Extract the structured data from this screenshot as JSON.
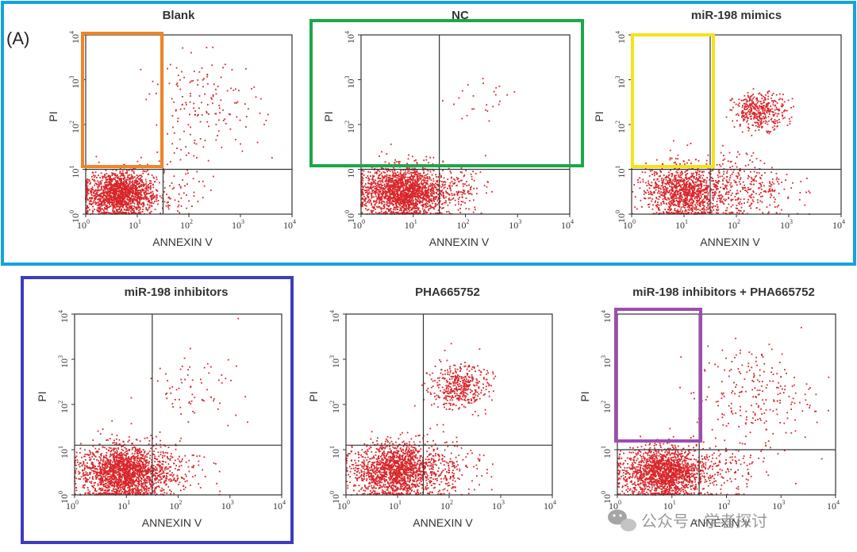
{
  "figure_label": "(A)",
  "watermark": "公众号 · 学者探讨",
  "colors": {
    "dots": "#d8262a",
    "frame": "#333333",
    "highlight_a": "#16a2e0",
    "highlight_b": "#3c3cc0",
    "box_orange": "#f08526",
    "box_green": "#1aa84a",
    "box_yellow": "#f7e21a",
    "box_purple": "#a04bb0"
  },
  "chart_data": [
    {
      "type": "scatter",
      "title": "Blank",
      "xlabel": "ANNEXIN V",
      "ylabel": "PI",
      "scale": "log",
      "xlim": [
        "10^0",
        "10^4"
      ],
      "ylim": [
        "10^0",
        "10^4"
      ],
      "xticks": [
        "10^0",
        "10^1",
        "10^2",
        "10^3",
        "10^4"
      ],
      "yticks": [
        "10^0",
        "10^1",
        "10^2",
        "10^3",
        "10^4"
      ],
      "quadrant_gate": {
        "x": "10^1.5",
        "y": "10^1"
      },
      "populations": [
        {
          "cx": 0.65,
          "cy": 0.45,
          "sx": 0.35,
          "sy": 0.25,
          "n": 1600
        },
        {
          "cx": 2.3,
          "cy": 2.4,
          "sx": 0.55,
          "sy": 0.55,
          "n": 160
        },
        {
          "cx": 1.8,
          "cy": 0.6,
          "sx": 0.35,
          "sy": 0.35,
          "n": 60
        }
      ]
    },
    {
      "type": "scatter",
      "title": "NC",
      "xlabel": "ANNEXIN V",
      "ylabel": "PI",
      "scale": "log",
      "xlim": [
        "10^0",
        "10^4"
      ],
      "ylim": [
        "10^0",
        "10^4"
      ],
      "xticks": [
        "10^0",
        "10^1",
        "10^2",
        "10^3",
        "10^4"
      ],
      "yticks": [
        "10^0",
        "10^1",
        "10^2",
        "10^3",
        "10^4"
      ],
      "quadrant_gate": {
        "x": "10^1.5",
        "y": "10^1"
      },
      "populations": [
        {
          "cx": 0.8,
          "cy": 0.5,
          "sx": 0.4,
          "sy": 0.28,
          "n": 1900
        },
        {
          "cx": 1.9,
          "cy": 0.55,
          "sx": 0.35,
          "sy": 0.3,
          "n": 120
        },
        {
          "cx": 2.4,
          "cy": 2.5,
          "sx": 0.35,
          "sy": 0.2,
          "n": 25
        }
      ]
    },
    {
      "type": "scatter",
      "title": "miR-198 mimics",
      "xlabel": "ANNEXIN V",
      "ylabel": "PI",
      "scale": "log",
      "xlim": [
        "10^0",
        "10^4"
      ],
      "ylim": [
        "10^0",
        "10^4"
      ],
      "xticks": [
        "10^0",
        "10^1",
        "10^2",
        "10^3",
        "10^4"
      ],
      "yticks": [
        "10^0",
        "10^1",
        "10^2",
        "10^3",
        "10^4"
      ],
      "quadrant_gate": {
        "x": "10^1.5",
        "y": "10^1"
      },
      "populations": [
        {
          "cx": 1.0,
          "cy": 0.5,
          "sx": 0.35,
          "sy": 0.3,
          "n": 1100
        },
        {
          "cx": 2.1,
          "cy": 0.55,
          "sx": 0.5,
          "sy": 0.35,
          "n": 350
        },
        {
          "cx": 2.45,
          "cy": 2.3,
          "sx": 0.25,
          "sy": 0.2,
          "n": 400
        }
      ]
    },
    {
      "type": "scatter",
      "title": "miR-198 inhibitors",
      "xlabel": "ANNEXIN V",
      "ylabel": "PI",
      "scale": "log",
      "xlim": [
        "10^0",
        "10^4"
      ],
      "ylim": [
        "10^0",
        "10^4"
      ],
      "xticks": [
        "10^0",
        "10^1",
        "10^2",
        "10^3",
        "10^4"
      ],
      "yticks": [
        "10^0",
        "10^1",
        "10^2",
        "10^3",
        "10^4"
      ],
      "quadrant_gate": {
        "x": "10^1.5",
        "y": "10^1.1"
      },
      "populations": [
        {
          "cx": 0.95,
          "cy": 0.5,
          "sx": 0.4,
          "sy": 0.3,
          "n": 1900
        },
        {
          "cx": 1.9,
          "cy": 0.55,
          "sx": 0.35,
          "sy": 0.3,
          "n": 120
        },
        {
          "cx": 2.3,
          "cy": 2.4,
          "sx": 0.45,
          "sy": 0.35,
          "n": 70
        }
      ]
    },
    {
      "type": "scatter",
      "title": "PHA665752",
      "xlabel": "ANNEXIN V",
      "ylabel": "PI",
      "scale": "log",
      "xlim": [
        "10^0",
        "10^4"
      ],
      "ylim": [
        "10^0",
        "10^4"
      ],
      "xticks": [
        "10^0",
        "10^1",
        "10^2",
        "10^3",
        "10^4"
      ],
      "yticks": [
        "10^0",
        "10^1",
        "10^2",
        "10^3",
        "10^4"
      ],
      "quadrant_gate": {
        "x": "10^1.5",
        "y": "10^1.1"
      },
      "populations": [
        {
          "cx": 0.95,
          "cy": 0.55,
          "sx": 0.4,
          "sy": 0.3,
          "n": 1500
        },
        {
          "cx": 2.2,
          "cy": 2.4,
          "sx": 0.28,
          "sy": 0.25,
          "n": 420
        },
        {
          "cx": 1.9,
          "cy": 0.6,
          "sx": 0.4,
          "sy": 0.35,
          "n": 200
        }
      ]
    },
    {
      "type": "scatter",
      "title": "miR-198 inhibitors + PHA665752",
      "xlabel": "ANNEXIN V",
      "ylabel": "PI",
      "scale": "log",
      "xlim": [
        "10^0",
        "10^4"
      ],
      "ylim": [
        "10^0",
        "10^4"
      ],
      "xticks": [
        "10^0",
        "10^1",
        "10^2",
        "10^3",
        "10^4"
      ],
      "yticks": [
        "10^0",
        "10^1",
        "10^2",
        "10^3",
        "10^4"
      ],
      "quadrant_gate": {
        "x": "10^1.5",
        "y": "10^1"
      },
      "populations": [
        {
          "cx": 0.85,
          "cy": 0.5,
          "sx": 0.38,
          "sy": 0.28,
          "n": 1700
        },
        {
          "cx": 2.5,
          "cy": 2.2,
          "sx": 0.55,
          "sy": 0.55,
          "n": 230
        },
        {
          "cx": 1.95,
          "cy": 0.6,
          "sx": 0.4,
          "sy": 0.35,
          "n": 120
        }
      ]
    }
  ]
}
